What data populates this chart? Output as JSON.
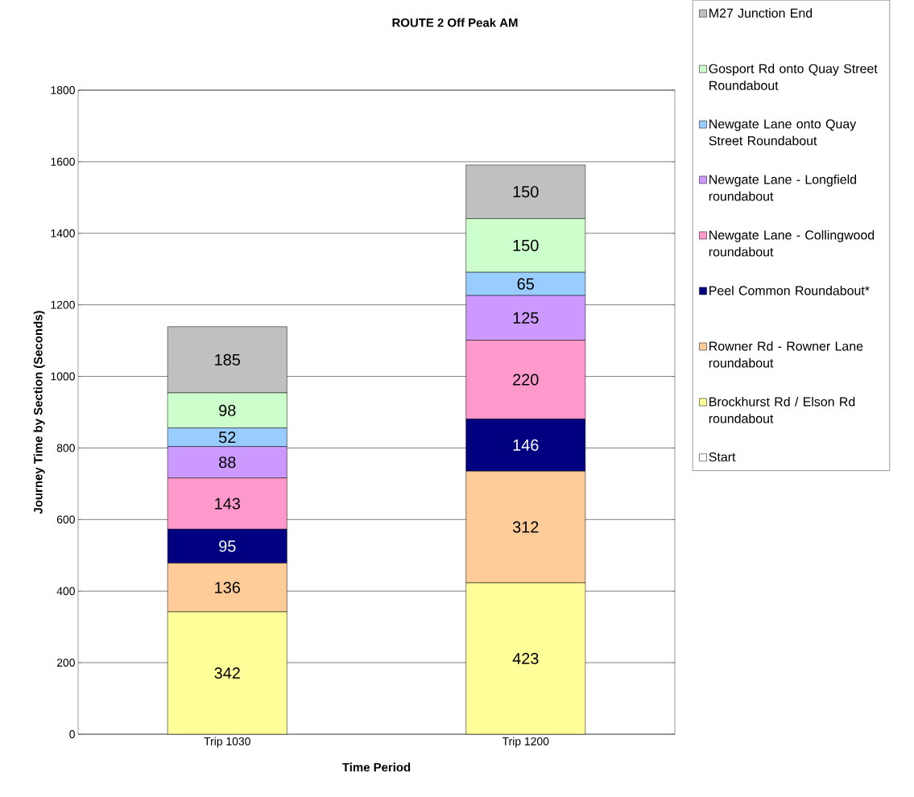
{
  "chart_data": {
    "type": "bar",
    "stacked": true,
    "title": "ROUTE 2 Off Peak AM",
    "xlabel": "Time Period",
    "ylabel": "Journey Time by Section (Seconds)",
    "categories": [
      "Trip 1030",
      "Trip 1200"
    ],
    "ylim": [
      0,
      1800
    ],
    "yticks": [
      0,
      200,
      400,
      600,
      800,
      1000,
      1200,
      1400,
      1600,
      1800
    ],
    "grid": "y",
    "legend": "right",
    "series": [
      {
        "name": "Start",
        "color": "#ffffff",
        "values": [
          0,
          0
        ],
        "value_labels": [
          null,
          null
        ]
      },
      {
        "name": "Brockhurst Rd / Elson Rd roundabout",
        "color": "#ffff99",
        "values": [
          342,
          423
        ],
        "value_labels": [
          "342",
          "423"
        ]
      },
      {
        "name": "Rowner Rd - Rowner Lane roundabout",
        "color": "#ffcc99",
        "values": [
          136,
          312
        ],
        "value_labels": [
          "136",
          "312"
        ]
      },
      {
        "name": "Peel Common Roundabout*",
        "color": "#000080",
        "values": [
          95,
          146
        ],
        "value_labels": [
          "95",
          "146"
        ]
      },
      {
        "name": "Newgate Lane - Collingwood roundabout",
        "color": "#ff99cc",
        "values": [
          143,
          220
        ],
        "value_labels": [
          "143",
          "220"
        ]
      },
      {
        "name": "Newgate Lane - Longfield roundabout",
        "color": "#cc99ff",
        "values": [
          88,
          125
        ],
        "value_labels": [
          "88",
          "125"
        ]
      },
      {
        "name": "Newgate Lane onto Quay Street Roundabout",
        "color": "#99ccff",
        "values": [
          52,
          65
        ],
        "value_labels": [
          "52",
          "65"
        ]
      },
      {
        "name": "Gosport Rd onto Quay Street Roundabout",
        "color": "#ccffcc",
        "values": [
          98,
          150
        ],
        "value_labels": [
          "98",
          "150"
        ]
      },
      {
        "name": "M27 Junction End",
        "color": "#c0c0c0",
        "values": [
          185,
          150
        ],
        "value_labels": [
          "185",
          "150"
        ]
      }
    ]
  }
}
